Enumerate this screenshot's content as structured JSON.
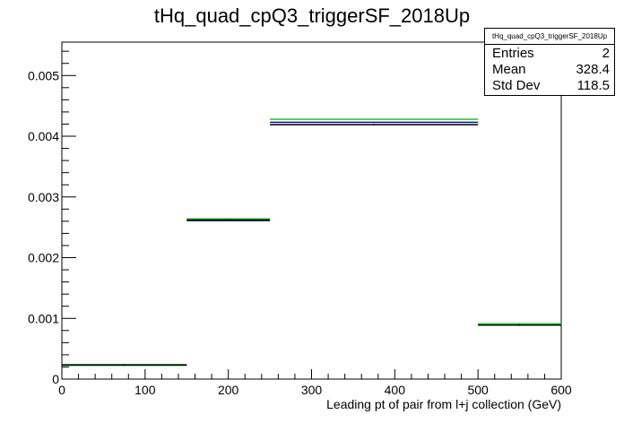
{
  "chart_data": {
    "type": "histogram",
    "title": "tHq_quad_cpQ3_triggerSF_2018Up",
    "xlabel": "Leading pt of pair from l+j collection (GeV)",
    "ylabel": "",
    "xlim": [
      0,
      600
    ],
    "ylim": [
      0,
      0.00555
    ],
    "x_ticks": [
      0,
      100,
      200,
      300,
      400,
      500,
      600
    ],
    "y_ticks": [
      0,
      0.001,
      0.002,
      0.003,
      0.004,
      0.005
    ],
    "y_tick_labels": [
      "0",
      "0.001",
      "0.002",
      "0.003",
      "0.004",
      "0.005"
    ],
    "bin_edges": [
      0,
      150,
      250,
      500,
      600
    ],
    "series": [
      {
        "color": "#00cc00",
        "values": [
          0.00024,
          0.00264,
          0.00428,
          0.00091
        ]
      },
      {
        "color": "#000099",
        "values": [
          0.00023,
          0.00261,
          0.00423,
          0.00089
        ]
      },
      {
        "color": "#000000",
        "values": [
          0.00023,
          0.00262,
          0.00419,
          0.00089
        ]
      }
    ],
    "grid": false,
    "stats": {
      "name": "tHq_quad_cpQ3_triggerSF_2018Up",
      "entries_label": "Entries",
      "entries": "2",
      "mean_label": "Mean",
      "mean": "328.4",
      "std_label": "Std Dev",
      "std": "118.5"
    }
  }
}
